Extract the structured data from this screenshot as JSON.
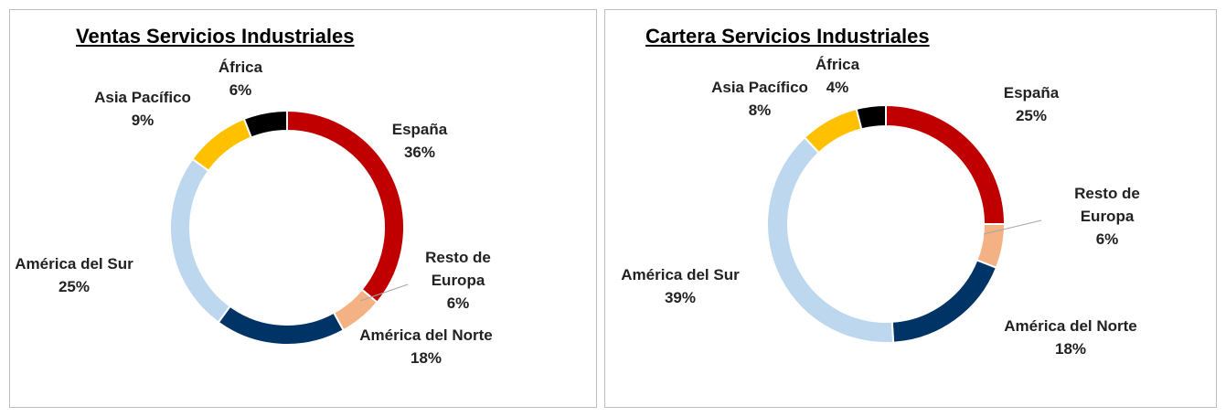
{
  "chart_data": [
    {
      "type": "donut",
      "title": "Ventas Servicios Industriales",
      "categories": [
        "España",
        "Resto de Europa",
        "América del Norte",
        "América del Sur",
        "Asia Pacífico",
        "África"
      ],
      "values": [
        36,
        6,
        18,
        25,
        9,
        6
      ],
      "value_labels": [
        "36%",
        "6%",
        "18%",
        "25%",
        "9%",
        "6%"
      ],
      "colors": [
        "#c00000",
        "#f4b183",
        "#003366",
        "#bdd7ee",
        "#ffc000",
        "#000000"
      ]
    },
    {
      "type": "donut",
      "title": "Cartera Servicios Industriales",
      "categories": [
        "España",
        "Resto de Europa",
        "América del Norte",
        "América del Sur",
        "Asia Pacífico",
        "África"
      ],
      "values": [
        25,
        6,
        18,
        39,
        8,
        4
      ],
      "value_labels": [
        "25%",
        "6%",
        "18%",
        "39%",
        "8%",
        "4%"
      ],
      "colors": [
        "#c00000",
        "#f4b183",
        "#003366",
        "#bdd7ee",
        "#ffc000",
        "#000000"
      ]
    }
  ]
}
